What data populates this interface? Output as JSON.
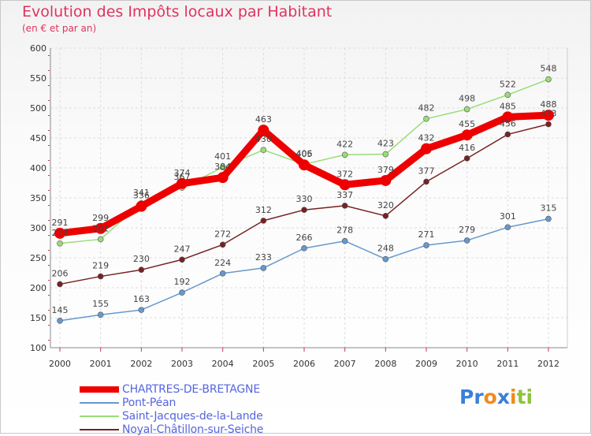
{
  "header": {
    "title": "Evolution des Impôts locaux par Habitant",
    "subtitle": "(en € et par an)"
  },
  "logo": {
    "text": "Proxiti",
    "colors": [
      "#3b7fd6",
      "#f08a1e",
      "#8fc23f"
    ]
  },
  "chart_data": {
    "type": "line",
    "title": "Evolution des Impôts locaux par Habitant",
    "subtitle": "(en € et par an)",
    "xlabel": "",
    "ylabel": "",
    "ylim": [
      100,
      600
    ],
    "yticks": [
      100,
      150,
      200,
      250,
      300,
      350,
      400,
      450,
      500,
      550,
      600
    ],
    "grid": true,
    "legend_position": "bottom-left",
    "categories": [
      "2000",
      "2001",
      "2002",
      "2003",
      "2004",
      "2005",
      "2006",
      "2007",
      "2008",
      "2009",
      "2010",
      "2011",
      "2012"
    ],
    "series": [
      {
        "name": "CHARTRES-DE-BRETAGNE",
        "color": "#ee0000",
        "emphasis": true,
        "values": [
          291,
          299,
          336,
          374,
          384,
          463,
          405,
          372,
          379,
          432,
          455,
          485,
          488
        ]
      },
      {
        "name": "Pont-Péan",
        "color": "#6699cc",
        "values": [
          145,
          155,
          163,
          192,
          224,
          233,
          266,
          278,
          248,
          271,
          279,
          301,
          315
        ]
      },
      {
        "name": "Saint-Jacques-de-la-Lande",
        "color": "#99dd77",
        "values": [
          274,
          281,
          341,
          367,
          401,
          430,
          406,
          422,
          423,
          482,
          498,
          522,
          548
        ]
      },
      {
        "name": "Noyal-Châtillon-sur-Seiche",
        "color": "#772222",
        "values": [
          206,
          219,
          230,
          247,
          272,
          312,
          330,
          337,
          320,
          377,
          416,
          456,
          473
        ]
      }
    ]
  }
}
